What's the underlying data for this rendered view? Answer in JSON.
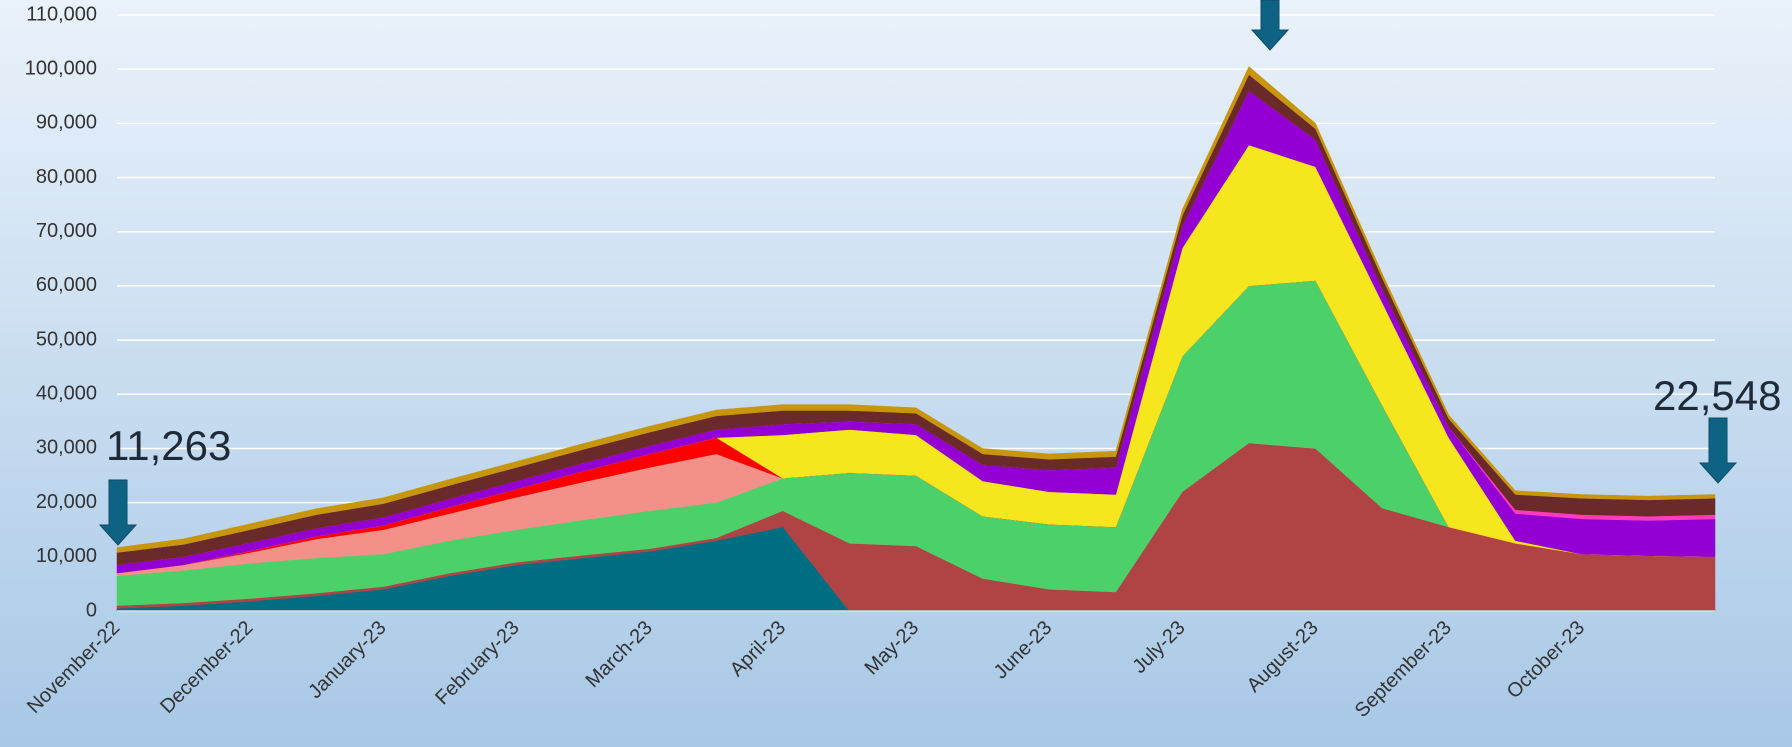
{
  "chart_data": {
    "type": "stacked_area",
    "categories": [
      "November-22",
      null,
      "December-22",
      null,
      "January-23",
      null,
      "February-23",
      null,
      "March-23",
      null,
      "April-23",
      null,
      "May-23",
      null,
      "June-23",
      null,
      "July-23",
      null,
      "August-23",
      null,
      "September-23",
      null,
      "October-23",
      null,
      null
    ],
    "ylim": [
      0,
      110000
    ],
    "yticks": [
      0,
      {
        "value": 10000,
        "label": "10,000"
      },
      {
        "value": 20000,
        "label": "20,000"
      },
      {
        "value": 30000,
        "label": "30,000"
      },
      {
        "value": 40000,
        "label": "40,000"
      },
      {
        "value": 50000,
        "label": "50,000"
      },
      {
        "value": 60000,
        "label": "60,000"
      },
      {
        "value": 70000,
        "label": "70,000"
      },
      {
        "value": 80000,
        "label": "80,000"
      },
      {
        "value": 90000,
        "label": "90,000"
      },
      {
        "value": 100000,
        "label": "100,000"
      },
      {
        "value": 110000,
        "label": "110,000"
      }
    ],
    "grid": true,
    "series": [
      {
        "color": "#006e82",
        "values": [
          500,
          1000,
          1800,
          2800,
          4000,
          6500,
          8500,
          9800,
          11000,
          13000,
          15500,
          0,
          0,
          0,
          0,
          0,
          0,
          0,
          0,
          0,
          0,
          0,
          0,
          0,
          0
        ]
      },
      {
        "color": "#b04444",
        "values": [
          500,
          500,
          500,
          500,
          500,
          500,
          500,
          500,
          500,
          500,
          3000,
          12500,
          12000,
          6000,
          4000,
          3500,
          22000,
          31000,
          30000,
          19000,
          15500,
          12500,
          10500,
          10200,
          10000
        ]
      },
      {
        "color": "#4cd06a",
        "values": [
          5500,
          6000,
          6500,
          6500,
          6000,
          6000,
          6000,
          6500,
          7000,
          6500,
          6000,
          13000,
          13000,
          11500,
          12000,
          12000,
          25000,
          29000,
          31000,
          19000,
          0,
          0,
          0,
          0,
          0
        ]
      },
      {
        "color": "#f4908a",
        "values": [
          500,
          1000,
          2000,
          3500,
          4500,
          5000,
          6000,
          7000,
          8000,
          9000,
          0,
          0,
          0,
          0,
          0,
          0,
          0,
          0,
          0,
          0,
          0,
          0,
          0,
          0,
          0
        ]
      },
      {
        "color": "#ff0000",
        "values": [
          0,
          0,
          300,
          500,
          800,
          1200,
          1500,
          2000,
          2500,
          3000,
          0,
          0,
          0,
          0,
          0,
          0,
          0,
          0,
          0,
          0,
          0,
          0,
          0,
          0,
          0
        ]
      },
      {
        "color": "#f5e61e",
        "values": [
          0,
          0,
          0,
          0,
          0,
          0,
          0,
          0,
          0,
          0,
          8000,
          8000,
          7500,
          6500,
          6000,
          6000,
          20000,
          26000,
          21000,
          19000,
          16500,
          500,
          0,
          0,
          0
        ]
      },
      {
        "color": "#9400d3",
        "values": [
          1500,
          1500,
          1500,
          1500,
          1500,
          1500,
          1500,
          1500,
          1500,
          1500,
          2000,
          1500,
          2000,
          3000,
          4000,
          5000,
          4000,
          10000,
          5000,
          2500,
          2000,
          5000,
          6500,
          6500,
          7000
        ]
      },
      {
        "color": "#ff3cbf",
        "values": [
          0,
          0,
          0,
          0,
          0,
          0,
          0,
          0,
          0,
          0,
          0,
          0,
          0,
          0,
          0,
          0,
          0,
          0,
          0,
          0,
          0,
          700,
          800,
          800,
          800
        ]
      },
      {
        "color": "#6b2a2a",
        "values": [
          2300,
          2300,
          2400,
          2500,
          2500,
          2500,
          2500,
          2500,
          2500,
          2500,
          2500,
          2000,
          2000,
          2000,
          2000,
          2000,
          2000,
          3000,
          2000,
          2000,
          1500,
          2800,
          3000,
          3000,
          3000
        ]
      },
      {
        "color": "#c8960c",
        "values": [
          900,
          1000,
          1100,
          1100,
          1100,
          1100,
          1100,
          1100,
          1100,
          1100,
          1100,
          1100,
          1000,
          1000,
          1000,
          1000,
          1100,
          1500,
          1000,
          800,
          700,
          700,
          700,
          700,
          700
        ]
      }
    ],
    "annotations": [
      "11,263",
      "22,548"
    ]
  }
}
